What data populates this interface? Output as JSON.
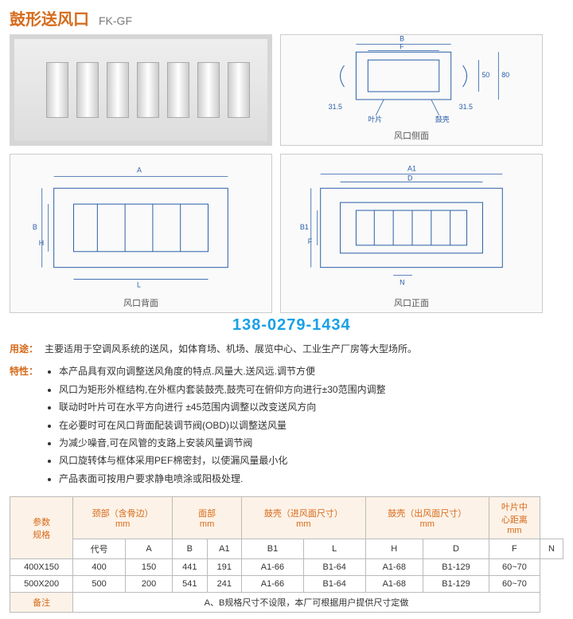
{
  "title": {
    "cn": "鼓形送风口",
    "code": "FK-GF",
    "color_accent": "#d66a1a"
  },
  "watermark": {
    "text": "138-0279-1434",
    "color": "#1aa0e6"
  },
  "diagrams": {
    "side": {
      "label": "风口侧面",
      "annotations": {
        "B": "B",
        "F": "F",
        "h1": "50",
        "h2": "80",
        "w_side": "31.5",
        "w_side2": "31.5",
        "leaf": "叶片",
        "shell": "鼓壳"
      }
    },
    "back": {
      "label": "风口背面",
      "annotations": {
        "A": "A",
        "B": "B",
        "H": "H",
        "L": "L"
      }
    },
    "front": {
      "label": "风口正面",
      "annotations": {
        "A1": "A1",
        "D": "D",
        "B1": "B1",
        "F": "F",
        "N": "N"
      }
    }
  },
  "usage": {
    "label": "用途：",
    "label_color": "#d66a1a",
    "text": "主要适用于空调风系统的送风，如体育场、机场、展览中心、工业生产厂房等大型场所。"
  },
  "features": {
    "label": "特性：",
    "label_color": "#d66a1a",
    "items": [
      "本产品具有双向调整送风角度的特点.风量大.送风远.调节方便",
      "风口为矩形外框结构,在外框内套装鼓壳,鼓壳可在俯仰方向进行±30范围内调整",
      "联动时叶片可在水平方向进行 ±45范围内调整以改变送风方向",
      "在必要时可在风口背面配装调节阀(OBD)以调整送风量",
      "为减少噪音,可在风管的支路上安装风量调节阀",
      "风口旋转体与框体采用PEF棉密封，以使漏风量最小化",
      "产品表面可按用户要求静电喷涂或阳极处理."
    ]
  },
  "table": {
    "head_group": {
      "param_spec": "参数\n规格",
      "neck": {
        "title": "颈部（含骨边）",
        "unit": "mm"
      },
      "face": {
        "title": "面部",
        "unit": "mm"
      },
      "shell_in": {
        "title": "鼓壳（进风面尺寸）",
        "unit": "mm"
      },
      "shell_out": {
        "title": "鼓壳（出风面尺寸）",
        "unit": "mm"
      },
      "blade_gap": {
        "title": "叶片中\n心距离",
        "unit": "mm"
      }
    },
    "columns": [
      "代号",
      "A",
      "B",
      "A1",
      "B1",
      "L",
      "H",
      "D",
      "F",
      "N"
    ],
    "rows": [
      {
        "model": "400X150",
        "A": "400",
        "B": "150",
        "A1": "441",
        "B1": "191",
        "L": "A1-66",
        "H": "B1-64",
        "D": "A1-68",
        "F": "B1-129",
        "N": "60~70"
      },
      {
        "model": "500X200",
        "A": "500",
        "B": "200",
        "A1": "541",
        "B1": "241",
        "L": "A1-66",
        "H": "B1-64",
        "D": "A1-68",
        "F": "B1-129",
        "N": "60~70"
      }
    ],
    "note": {
      "label": "备注",
      "text": "A、B规格尺寸不设限，本厂可根据用户提供尺寸定做"
    },
    "header_color": "#d66a1a",
    "header_bg": "#fdf2e7"
  }
}
